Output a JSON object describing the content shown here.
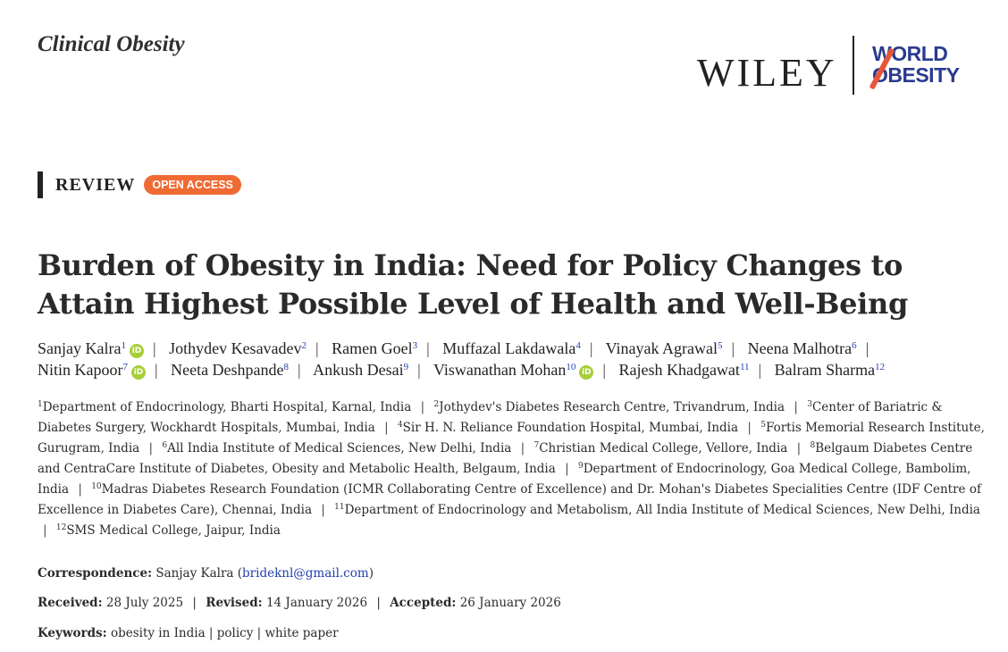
{
  "header": {
    "journal": "Clinical Obesity",
    "publisher": "WILEY",
    "partner_logo": [
      "WORLD",
      "OBESITY"
    ]
  },
  "article": {
    "type": "REVIEW",
    "access_badge": "OPEN ACCESS",
    "title": "Burden of Obesity in India: Need for Policy Changes to Attain Highest Possible Level of Health and Well-Being",
    "authors": [
      {
        "name": "Sanjay Kalra",
        "aff": "1",
        "orcid": true
      },
      {
        "name": "Jothydev Kesavadev",
        "aff": "2",
        "orcid": false
      },
      {
        "name": "Ramen Goel",
        "aff": "3",
        "orcid": false
      },
      {
        "name": "Muffazal Lakdawala",
        "aff": "4",
        "orcid": false
      },
      {
        "name": "Vinayak Agrawal",
        "aff": "5",
        "orcid": false
      },
      {
        "name": "Neena Malhotra",
        "aff": "6",
        "orcid": false
      },
      {
        "name": "Nitin Kapoor",
        "aff": "7",
        "orcid": true
      },
      {
        "name": "Neeta Deshpande",
        "aff": "8",
        "orcid": false
      },
      {
        "name": "Ankush Desai",
        "aff": "9",
        "orcid": false
      },
      {
        "name": "Viswanathan Mohan",
        "aff": "10",
        "orcid": true
      },
      {
        "name": "Rajesh Khadgawat",
        "aff": "11",
        "orcid": false
      },
      {
        "name": "Balram Sharma",
        "aff": "12",
        "orcid": false
      }
    ],
    "affiliations": [
      {
        "num": "1",
        "text": "Department of Endocrinology, Bharti Hospital, Karnal, India"
      },
      {
        "num": "2",
        "text": "Jothydev's Diabetes Research Centre, Trivandrum, India"
      },
      {
        "num": "3",
        "text": "Center of Bariatric & Diabetes Surgery, Wockhardt Hospitals, Mumbai, India"
      },
      {
        "num": "4",
        "text": "Sir H. N. Reliance Foundation Hospital, Mumbai, India"
      },
      {
        "num": "5",
        "text": "Fortis Memorial Research Institute, Gurugram, India"
      },
      {
        "num": "6",
        "text": "All India Institute of Medical Sciences, New Delhi, India"
      },
      {
        "num": "7",
        "text": "Christian Medical College, Vellore, India"
      },
      {
        "num": "8",
        "text": "Belgaum Diabetes Centre and CentraCare Institute of Diabetes, Obesity and Metabolic Health, Belgaum, India"
      },
      {
        "num": "9",
        "text": "Department of Endocrinology, Goa Medical College, Bambolim, India"
      },
      {
        "num": "10",
        "text": "Madras Diabetes Research Foundation (ICMR Collaborating Centre of Excellence) and Dr. Mohan's Diabetes Specialities Centre (IDF Centre of Excellence in Diabetes Care), Chennai, India"
      },
      {
        "num": "11",
        "text": "Department of Endocrinology and Metabolism, All India Institute of Medical Sciences, New Delhi, India"
      },
      {
        "num": "12",
        "text": "SMS Medical College, Jaipur, India"
      }
    ],
    "correspondence": {
      "label": "Correspondence:",
      "name": "Sanjay Kalra",
      "email": "brideknl@gmail.com"
    },
    "dates": {
      "received_label": "Received:",
      "received": "28 July 2025",
      "revised_label": "Revised:",
      "revised": "14 January 2026",
      "accepted_label": "Accepted:",
      "accepted": "26 January 2026"
    },
    "keywords": {
      "label": "Keywords:",
      "items": [
        "obesity in India",
        "policy",
        "white paper"
      ]
    }
  }
}
